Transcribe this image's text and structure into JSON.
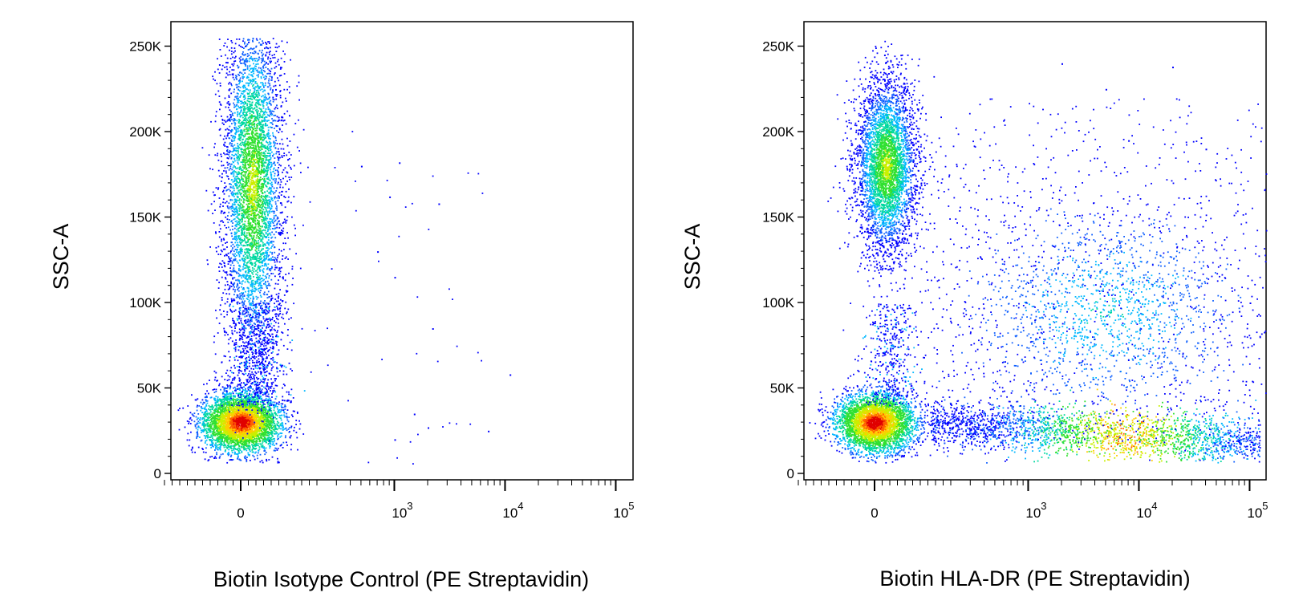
{
  "chart_data": [
    {
      "type": "scatter",
      "subtype": "flow-cytometry-density-dot-plot",
      "title": "",
      "xlabel": "Biotin Isotype Control (PE Streptavidin)",
      "ylabel": "SSC-A",
      "x_scale": "biexponential",
      "xlim": [
        -200,
        150000
      ],
      "ylim": [
        0,
        262000
      ],
      "x_ticks": [
        {
          "value": 0,
          "label": "0"
        },
        {
          "value": 1000,
          "base": "10",
          "exp": "3"
        },
        {
          "value": 10000,
          "base": "10",
          "exp": "4"
        },
        {
          "value": 100000,
          "base": "10",
          "exp": "5"
        }
      ],
      "y_ticks": [
        {
          "value": 0,
          "label": "0"
        },
        {
          "value": 50000,
          "label": "50K"
        },
        {
          "value": 100000,
          "label": "100K"
        },
        {
          "value": 150000,
          "label": "150K"
        },
        {
          "value": 200000,
          "label": "200K"
        },
        {
          "value": 250000,
          "label": "250K"
        }
      ],
      "grid": false,
      "color_scale": "density (blue → cyan → green → yellow → red)",
      "populations": [
        {
          "name": "low-SSC negative cluster",
          "center_x": 0,
          "center_y": 30000,
          "fraction": 0.46
        },
        {
          "name": "high-SSC negative cluster",
          "center_x": 30,
          "center_y": 170000,
          "fraction": 0.54
        }
      ],
      "scattered_events": [
        {
          "x": 500,
          "y": 180000
        },
        {
          "x": 1100,
          "y": 182000
        },
        {
          "x": 2500,
          "y": 158000
        },
        {
          "x": 900,
          "y": 162000
        },
        {
          "x": 700,
          "y": 130000
        },
        {
          "x": 1000,
          "y": 115000
        },
        {
          "x": 2200,
          "y": 85000
        },
        {
          "x": 11000,
          "y": 58000
        },
        {
          "x": 7000,
          "y": 25000
        },
        {
          "x": 2000,
          "y": 27000
        },
        {
          "x": 1500,
          "y": 35000
        },
        {
          "x": 1000,
          "y": 20000
        }
      ]
    },
    {
      "type": "scatter",
      "subtype": "flow-cytometry-density-dot-plot",
      "title": "",
      "xlabel": "Biotin HLA-DR (PE Streptavidin)",
      "ylabel": "SSC-A",
      "x_scale": "biexponential",
      "xlim": [
        -200,
        150000
      ],
      "ylim": [
        0,
        262000
      ],
      "x_ticks": [
        {
          "value": 0,
          "label": "0"
        },
        {
          "value": 1000,
          "base": "10",
          "exp": "3"
        },
        {
          "value": 10000,
          "base": "10",
          "exp": "4"
        },
        {
          "value": 100000,
          "base": "10",
          "exp": "5"
        }
      ],
      "y_ticks": [
        {
          "value": 0,
          "label": "0"
        },
        {
          "value": 50000,
          "label": "50K"
        },
        {
          "value": 100000,
          "label": "100K"
        },
        {
          "value": 150000,
          "label": "150K"
        },
        {
          "value": 200000,
          "label": "200K"
        },
        {
          "value": 250000,
          "label": "250K"
        }
      ],
      "grid": false,
      "color_scale": "density (blue → cyan → green → yellow → red)",
      "populations": [
        {
          "name": "low-SSC negative cluster",
          "center_x": 0,
          "center_y": 30000,
          "fraction": 0.33
        },
        {
          "name": "high-SSC negative cluster",
          "center_x": 30,
          "center_y": 180000,
          "fraction": 0.33
        },
        {
          "name": "low-SSC positive band",
          "center_x": 3000,
          "center_y": 30000,
          "fraction": 0.2
        },
        {
          "name": "mid-SSC positive cloud",
          "center_x": 5000,
          "center_y": 95000,
          "fraction": 0.14
        }
      ],
      "scattered_events": [
        {
          "x": 20000,
          "y": 238000
        },
        {
          "x": 5000,
          "y": 225000
        },
        {
          "x": 8000,
          "y": 195000
        },
        {
          "x": 40000,
          "y": 190000
        },
        {
          "x": 2000,
          "y": 240000
        },
        {
          "x": 80000,
          "y": 95000
        },
        {
          "x": 100000,
          "y": 100000
        }
      ]
    }
  ]
}
